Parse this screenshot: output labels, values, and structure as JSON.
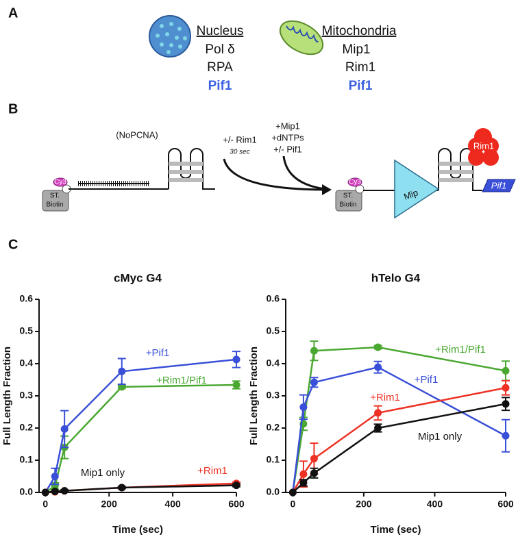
{
  "panel_a": {
    "label": "A",
    "nucleus": {
      "title": "Nucleus",
      "items": [
        "Pol δ",
        "RPA",
        "Pif1"
      ]
    },
    "mitochondria": {
      "title": "Mitochondria",
      "items": [
        "Mip1",
        "Rim1",
        "Pif1"
      ]
    }
  },
  "panel_b": {
    "label": "B",
    "condition": "(NoPCNA)",
    "step1": [
      "+/- Rim1",
      "30 sec"
    ],
    "step2": [
      "+Mip1",
      "+dNTPs",
      "+/- Pif1"
    ],
    "substrate_left": {
      "dye": "Cy3",
      "bead": [
        "ST.",
        "Biotin"
      ]
    },
    "substrate_right": {
      "dye": "Cy3",
      "bead": [
        "ST.",
        "Biotin"
      ],
      "polymerase": "Mip",
      "ssb": "Rim1",
      "helicase": "Pif1"
    }
  },
  "panel_c": {
    "label": "C"
  },
  "chart_data": [
    {
      "type": "line",
      "title": "cMyc G4",
      "x_label": "Time (sec)",
      "y_label": "Full Length Fraction",
      "x": [
        0,
        30,
        60,
        240,
        600
      ],
      "xlim": [
        -20,
        600
      ],
      "xticks": [
        0,
        200,
        400,
        600
      ],
      "ylim": [
        0,
        0.6
      ],
      "yticks": [
        {
          "value": 0,
          "label": "0.0"
        },
        {
          "value": 0.1,
          "label": "0.1"
        },
        {
          "value": 0.2,
          "label": "0.2"
        },
        {
          "value": 0.3,
          "label": "0.3"
        },
        {
          "value": 0.4,
          "label": "0.4"
        },
        {
          "value": 0.5,
          "label": "0.5"
        },
        {
          "value": 0.6,
          "label": "0.6"
        }
      ],
      "series": [
        {
          "name": "+Rim1/Pif1",
          "color": "#4aa832",
          "values": [
            0,
            0.02,
            0.14,
            0.328,
            0.334
          ],
          "errors": [
            null,
            0.01,
            0.035,
            0.005,
            0.012
          ]
        },
        {
          "name": "+Pif1",
          "color": "#3a4fd8",
          "values": [
            0,
            0.05,
            0.197,
            0.376,
            0.413
          ],
          "errors": [
            null,
            0.025,
            0.057,
            0.04,
            0.025
          ]
        },
        {
          "name": "+Rim1",
          "color": "#ee3124",
          "values": [
            0,
            0.002,
            0.005,
            0.015,
            0.028
          ],
          "errors": [
            null,
            0.002,
            0.003,
            0.003,
            0.004
          ]
        },
        {
          "name": "Mip1 only",
          "color": "#111111",
          "values": [
            0,
            0.003,
            0.005,
            0.015,
            0.022
          ],
          "errors": [
            null,
            0.002,
            0.003,
            0.003,
            0.004
          ]
        }
      ]
    },
    {
      "type": "line",
      "title": "hTelo G4",
      "x_label": "Time (sec)",
      "y_label": "Full Length Fraction",
      "x": [
        0,
        30,
        60,
        240,
        600
      ],
      "xlim": [
        -20,
        600
      ],
      "xticks": [
        0,
        200,
        400,
        600
      ],
      "ylim": [
        0,
        0.6
      ],
      "yticks": [
        {
          "value": 0,
          "label": "0.0"
        },
        {
          "value": 0.1,
          "label": "0.1"
        },
        {
          "value": 0.2,
          "label": "0.2"
        },
        {
          "value": 0.3,
          "label": "0.3"
        },
        {
          "value": 0.4,
          "label": "0.4"
        },
        {
          "value": 0.5,
          "label": "0.5"
        },
        {
          "value": 0.6,
          "label": "0.6"
        }
      ],
      "series": [
        {
          "name": "+Rim1/Pif1",
          "color": "#4aa832",
          "values": [
            0,
            0.213,
            0.44,
            0.451,
            0.378
          ],
          "errors": [
            null,
            0.02,
            0.03,
            0.005,
            0.03
          ]
        },
        {
          "name": "+Pif1",
          "color": "#3a4fd8",
          "values": [
            0,
            0.265,
            0.342,
            0.389,
            0.176
          ],
          "errors": [
            null,
            0.038,
            0.015,
            0.018,
            0.05
          ]
        },
        {
          "name": "+Rim1",
          "color": "#ee3124",
          "values": [
            0,
            0.057,
            0.105,
            0.247,
            0.325
          ],
          "errors": [
            null,
            0.04,
            0.048,
            0.022,
            0.022
          ]
        },
        {
          "name": "Mip1 only",
          "color": "#111111",
          "values": [
            0,
            0.03,
            0.06,
            0.2,
            0.275
          ],
          "errors": [
            null,
            0.01,
            0.015,
            0.012,
            0.02
          ]
        }
      ]
    }
  ]
}
